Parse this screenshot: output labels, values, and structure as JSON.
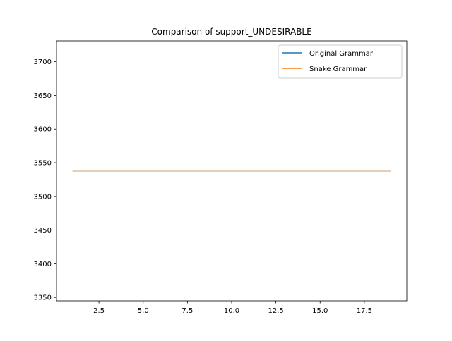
{
  "chart_data": {
    "type": "line",
    "title": "Comparison of support_UNDESIRABLE",
    "xlabel": "",
    "ylabel": "",
    "x": [
      1,
      2,
      3,
      4,
      5,
      6,
      7,
      8,
      9,
      10,
      11,
      12,
      13,
      14,
      15,
      16,
      17,
      18,
      19
    ],
    "series": [
      {
        "name": "Original Grammar",
        "color": "#1f77b4",
        "values": [
          3538,
          3538,
          3538,
          3538,
          3538,
          3538,
          3538,
          3538,
          3538,
          3538,
          3538,
          3538,
          3538,
          3538,
          3538,
          3538,
          3538,
          3538,
          3538
        ]
      },
      {
        "name": "Snake Grammar",
        "color": "#ff7f0e",
        "values": [
          3538,
          3538,
          3538,
          3538,
          3538,
          3538,
          3538,
          3538,
          3538,
          3538,
          3538,
          3538,
          3538,
          3538,
          3538,
          3538,
          3538,
          3538,
          3538
        ]
      }
    ],
    "xlim": [
      0.1,
      19.9
    ],
    "ylim": [
      3345,
      3731
    ],
    "xticks": [
      2.5,
      5.0,
      7.5,
      10.0,
      12.5,
      15.0,
      17.5
    ],
    "xtick_labels": [
      "2.5",
      "5.0",
      "7.5",
      "10.0",
      "12.5",
      "15.0",
      "17.5"
    ],
    "yticks": [
      3350,
      3400,
      3450,
      3500,
      3550,
      3600,
      3650,
      3700
    ],
    "ytick_labels": [
      "3350",
      "3400",
      "3450",
      "3500",
      "3550",
      "3600",
      "3650",
      "3700"
    ],
    "grid": false,
    "legend_position": "top-right"
  }
}
